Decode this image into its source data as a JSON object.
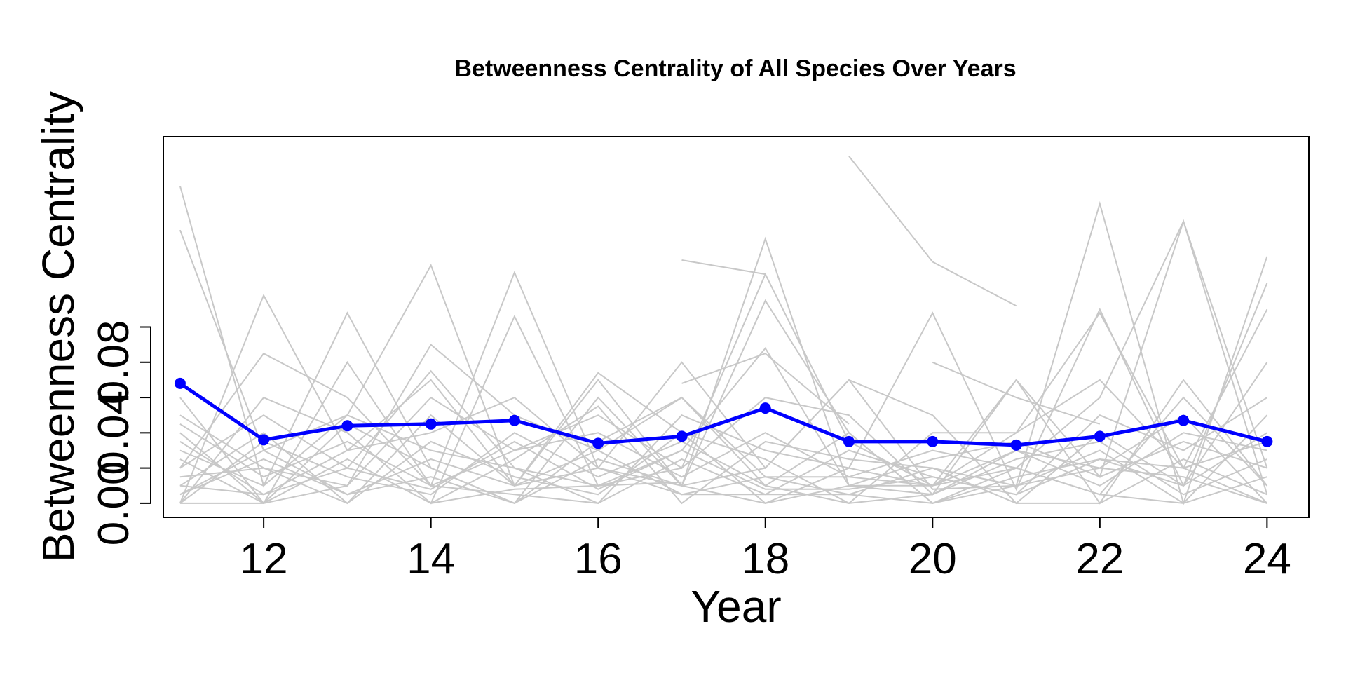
{
  "chart_data": {
    "type": "line",
    "title": "Betweenness Centrality of All Species Over Years",
    "xlabel": "Year",
    "ylabel": "Betweenness Centrality",
    "xlim": [
      10.8,
      24.5
    ],
    "ylim": [
      -0.008,
      0.208
    ],
    "x_ticks": [
      12,
      14,
      16,
      18,
      20,
      22,
      24
    ],
    "x_tick_labels": [
      "12",
      "14",
      "16",
      "18",
      "20",
      "22",
      "24"
    ],
    "y_ticks": [
      0.0,
      0.02,
      0.04,
      0.06,
      0.08,
      0.1
    ],
    "y_tick_labels": [
      "0.00",
      "",
      "0.04",
      "",
      "0.08",
      ""
    ],
    "grid": false,
    "colors": {
      "species": "#c8c8c8",
      "mean": "#0000ff",
      "axis": "#000000"
    },
    "mean_series": {
      "x": [
        11,
        12,
        13,
        14,
        15,
        16,
        17,
        18,
        19,
        20,
        21,
        22,
        23,
        24
      ],
      "values": [
        0.068,
        0.036,
        0.044,
        0.045,
        0.047,
        0.034,
        0.038,
        0.054,
        0.035,
        0.035,
        0.033,
        0.038,
        0.047,
        0.035
      ]
    },
    "species_series": [
      {
        "x": [
          11,
          12,
          13,
          14,
          15,
          16,
          17,
          18,
          19,
          20,
          21,
          22,
          23,
          24
        ],
        "values": [
          0.18,
          0.01,
          0.108,
          0.02,
          0.0,
          0.06,
          0.01,
          0.15,
          0.01,
          0.005,
          0.07,
          0.015,
          0.16,
          0.02
        ]
      },
      {
        "x": [
          11,
          12,
          13,
          14,
          15,
          16,
          17,
          18,
          19,
          20,
          21,
          22,
          23,
          24
        ],
        "values": [
          0.155,
          0.03,
          0.05,
          0.135,
          0.01,
          0.02,
          0.08,
          0.02,
          0.07,
          0.008,
          0.01,
          0.17,
          0.0,
          0.14
        ]
      },
      {
        "x": [
          11,
          12,
          13,
          14,
          15,
          16,
          17,
          18,
          19,
          20,
          21,
          22,
          23,
          24
        ],
        "values": [
          0.0,
          0.118,
          0.03,
          0.07,
          0.01,
          0.074,
          0.04,
          0.0,
          0.02,
          0.108,
          0.008,
          0.11,
          0.01,
          0.125
        ]
      },
      {
        "x": [
          11,
          12,
          13,
          14,
          15,
          16,
          17,
          18,
          19,
          20,
          21,
          22,
          23,
          24
        ],
        "values": [
          0.02,
          0.085,
          0.06,
          0.01,
          0.131,
          0.02,
          0.01,
          0.115,
          0.04,
          0.0,
          0.02,
          0.06,
          0.16,
          0.005
        ]
      },
      {
        "x": [
          11,
          12,
          13,
          14,
          15,
          16,
          17,
          18,
          19,
          20,
          21,
          22,
          23,
          24
        ],
        "values": [
          0.06,
          0.0,
          0.01,
          0.09,
          0.05,
          0.03,
          0.06,
          0.01,
          0.0,
          0.04,
          0.04,
          0.07,
          0.02,
          0.11
        ]
      },
      {
        "x": [
          11,
          12,
          13,
          14,
          15,
          16,
          17,
          18,
          19,
          20,
          21,
          22,
          23,
          24
        ],
        "values": [
          0.0,
          0.06,
          0.04,
          0.0,
          0.106,
          0.01,
          0.03,
          0.088,
          0.01,
          0.01,
          0.07,
          0.0,
          0.07,
          0.01
        ]
      },
      {
        "x": [
          11,
          12,
          13,
          14,
          15,
          16,
          17,
          18,
          19,
          20,
          21,
          22,
          23,
          24
        ],
        "values": [
          0.04,
          0.0,
          0.08,
          0.01,
          0.03,
          0.05,
          0.02,
          0.13,
          0.035,
          0.01,
          0.04,
          0.108,
          0.02,
          0.0
        ]
      },
      {
        "x": [
          11,
          12,
          13,
          14,
          15,
          16,
          17,
          18,
          19,
          20,
          21,
          22,
          23,
          24
        ],
        "values": [
          0.01,
          0.04,
          0.0,
          0.05,
          0.01,
          0.07,
          0.01,
          0.02,
          0.07,
          0.05,
          0.0,
          0.04,
          0.01,
          0.08
        ]
      },
      {
        "x": [
          11,
          12,
          13,
          14,
          15,
          16,
          17,
          18,
          19,
          20,
          21,
          22,
          23,
          24
        ],
        "values": [
          0.03,
          0.01,
          0.05,
          0.03,
          0.02,
          0.0,
          0.05,
          0.03,
          0.02,
          0.01,
          0.03,
          0.02,
          0.05,
          0.0
        ]
      },
      {
        "x": [
          11,
          12,
          13,
          14,
          15,
          16,
          17,
          18,
          19,
          20,
          21,
          22,
          23,
          24
        ],
        "values": [
          0.005,
          0.025,
          0.005,
          0.015,
          0.0,
          0.035,
          0.06,
          0.015,
          0.005,
          0.02,
          0.01,
          0.03,
          0.0,
          0.05
        ]
      },
      {
        "x": [
          11,
          12,
          13,
          14,
          15,
          16,
          17,
          18,
          19,
          20,
          21,
          22,
          23,
          24
        ],
        "values": [
          0.02,
          0.05,
          0.02,
          0.075,
          0.02,
          0.01,
          0.02,
          0.06,
          0.05,
          0.005,
          0.03,
          0.01,
          0.04,
          0.03
        ]
      },
      {
        "x": [
          11,
          12,
          13,
          14,
          15,
          16,
          17,
          18,
          19,
          20,
          21,
          22,
          23,
          24
        ],
        "values": [
          0.01,
          0.005,
          0.03,
          0.04,
          0.06,
          0.02,
          0.005,
          0.005,
          0.03,
          0.015,
          0.005,
          0.05,
          0.03,
          0.06
        ]
      },
      {
        "x": [
          11,
          12,
          13,
          14,
          15,
          16,
          17,
          18,
          19,
          20,
          21,
          22,
          23,
          24
        ],
        "values": [
          0.05,
          0.02,
          0.01,
          0.06,
          0.03,
          0.04,
          0.015,
          0.04,
          0.015,
          0.03,
          0.02,
          0.005,
          0.06,
          0.01
        ]
      },
      {
        "x": [
          11,
          12,
          13,
          14,
          15,
          16,
          17,
          18,
          19,
          20,
          21,
          22,
          23,
          24
        ],
        "values": [
          0.0,
          0.035,
          0.015,
          0.005,
          0.04,
          0.015,
          0.035,
          0.01,
          0.04,
          0.0,
          0.015,
          0.025,
          0.01,
          0.04
        ]
      },
      {
        "x": [
          11,
          12,
          13,
          14,
          15,
          16,
          17,
          18,
          19,
          20,
          21,
          22,
          23,
          24
        ],
        "values": [
          0.025,
          0.0,
          0.045,
          0.02,
          0.0,
          0.025,
          0.01,
          0.0,
          0.01,
          0.025,
          0.035,
          0.015,
          0.035,
          0.02
        ]
      },
      {
        "x": [
          11,
          12,
          13,
          14,
          15,
          16,
          17,
          18,
          19,
          20,
          21,
          22,
          23,
          24
        ],
        "values": [
          0.015,
          0.02,
          0.0,
          0.035,
          0.015,
          0.005,
          0.04,
          0.025,
          0.0,
          0.005,
          0.025,
          0.035,
          0.005,
          0.025
        ]
      },
      {
        "x": [
          11,
          12,
          13,
          14,
          15,
          16,
          17,
          18,
          19,
          20,
          21,
          22,
          23,
          24
        ],
        "values": [
          0.0,
          0.0,
          0.025,
          0.0,
          0.025,
          0.055,
          0.0,
          0.035,
          0.025,
          0.02,
          0.0,
          0.0,
          0.025,
          0.005
        ]
      },
      {
        "x": [
          11,
          12,
          13,
          14,
          15,
          16,
          17,
          18,
          19,
          20,
          21,
          22,
          23,
          24
        ],
        "values": [
          0.045,
          0.015,
          0.035,
          0.01,
          0.005,
          0.0,
          0.025,
          0.005,
          0.005,
          0.0,
          0.01,
          0.02,
          0.015,
          0.0
        ]
      },
      {
        "x": [
          11,
          12,
          13,
          14,
          15,
          16,
          17,
          18,
          19,
          20,
          21,
          22,
          23,
          24
        ],
        "values": [
          0.005,
          0.03,
          0.005,
          0.025,
          0.01,
          0.03,
          0.005,
          0.015,
          0.015,
          0.01,
          0.02,
          0.005,
          0.0,
          0.015
        ]
      },
      {
        "x": [
          11,
          12,
          13,
          14,
          15,
          16,
          17,
          18,
          19,
          20,
          21,
          22,
          23,
          24
        ],
        "values": [
          0.035,
          0.005,
          0.02,
          0.008,
          0.035,
          0.008,
          0.03,
          0.008,
          0.008,
          0.015,
          0.005,
          0.025,
          0.02,
          0.035
        ]
      },
      {
        "x": [
          17,
          18
        ],
        "values": [
          0.138,
          0.13
        ]
      },
      {
        "x": [
          19,
          20,
          21
        ],
        "values": [
          0.197,
          0.137,
          0.112
        ]
      },
      {
        "x": [
          20,
          21,
          22
        ],
        "values": [
          0.08,
          0.06,
          0.045
        ]
      },
      {
        "x": [
          17,
          18,
          19
        ],
        "values": [
          0.068,
          0.085,
          0.045
        ]
      },
      {
        "x": [
          14,
          15,
          16,
          17
        ],
        "values": [
          0.0,
          0.008,
          0.01,
          0.012
        ]
      }
    ]
  }
}
